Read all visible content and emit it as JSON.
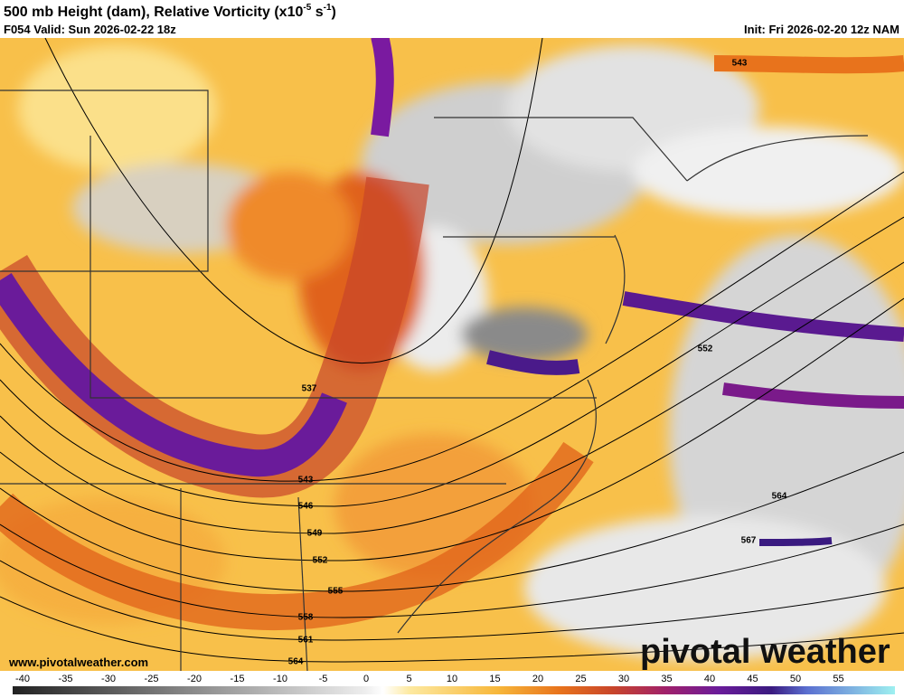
{
  "header": {
    "title_parts": [
      "500 mb Height (dam), Relative Vorticity (x10",
      "-5",
      " s",
      "-1",
      ")"
    ],
    "valid": "F054 Valid: Sun 2026-02-22 18z",
    "init": "Init: Fri 2026-02-20 12z NAM"
  },
  "map": {
    "contour_labels": [
      537,
      543,
      546,
      549,
      552,
      555,
      558,
      561,
      564,
      552,
      564,
      567,
      543
    ]
  },
  "watermark": "pivotal weather",
  "url": "www.pivotalweather.com",
  "colorbar": {
    "ticks": [
      -40,
      -35,
      -30,
      -25,
      -20,
      -15,
      -10,
      -5,
      0,
      5,
      10,
      15,
      20,
      25,
      30,
      35,
      40,
      45,
      50,
      55
    ]
  }
}
